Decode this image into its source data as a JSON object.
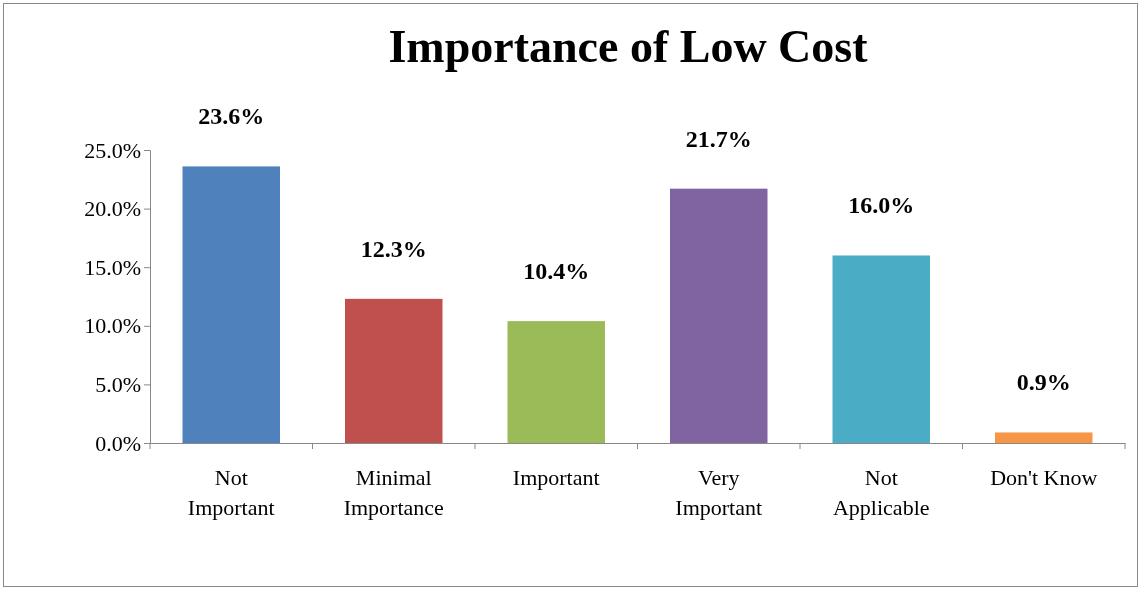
{
  "chart_data": {
    "type": "bar",
    "title": "Importance of Low Cost",
    "categories": [
      "Not Important",
      "Minimal Importance",
      "Important",
      "Very Important",
      "Not Applicable",
      "Don't Know"
    ],
    "values": [
      23.6,
      12.3,
      10.4,
      21.7,
      16.0,
      0.9
    ],
    "colors": [
      "#4f81bd",
      "#c0504d",
      "#9bbb59",
      "#8064a2",
      "#4bacc6",
      "#f79646"
    ],
    "value_labels": [
      "23.6%",
      "12.3%",
      "10.4%",
      "21.7%",
      "16.0%",
      "0.9%"
    ],
    "ylim": [
      0,
      25
    ],
    "yticks": [
      {
        "value": 0,
        "label": "0.0%"
      },
      {
        "value": 5,
        "label": "5.0%"
      },
      {
        "value": 10,
        "label": "10.0%"
      },
      {
        "value": 15,
        "label": "15.0%"
      },
      {
        "value": 20,
        "label": "20.0%"
      },
      {
        "value": 25,
        "label": "25.0%"
      }
    ],
    "grid": false
  }
}
